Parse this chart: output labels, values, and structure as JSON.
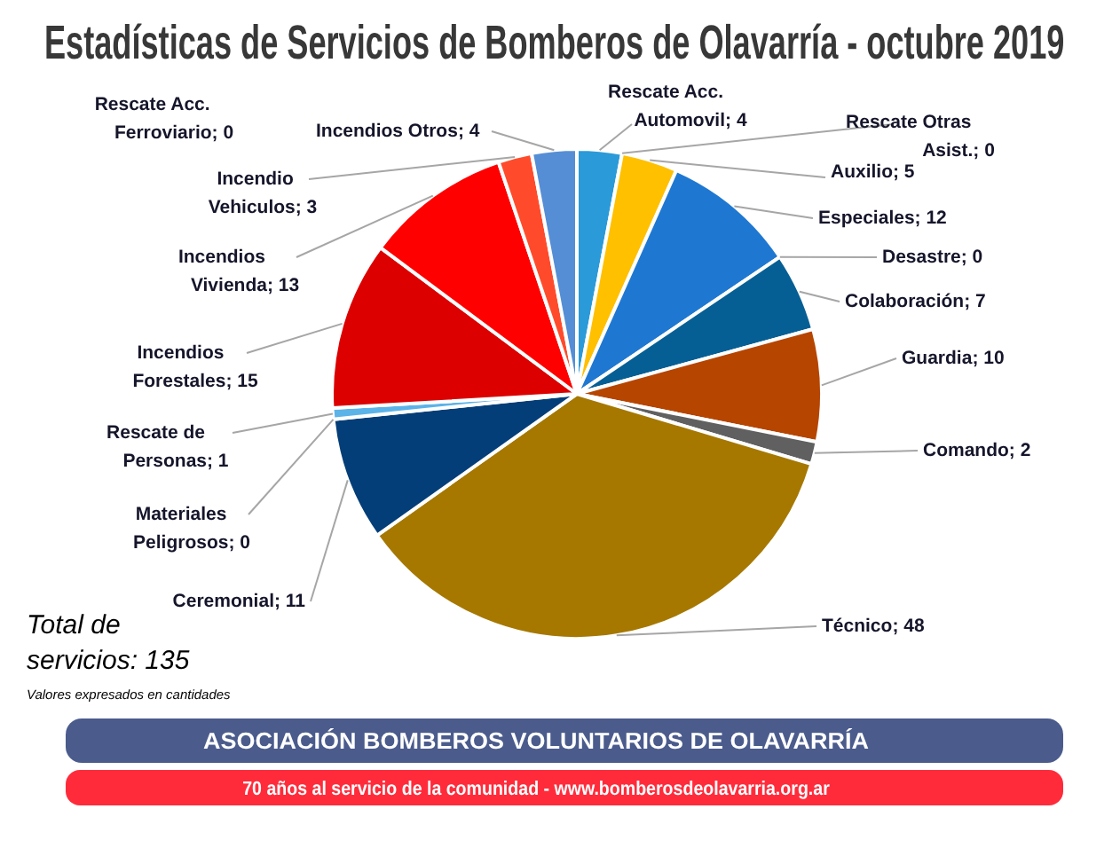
{
  "chart_data": {
    "type": "pie",
    "title": "Estadísticas de Servicios de Bomberos de Olavarría - octubre 2019",
    "categories": [
      "Rescate Acc. Automovil",
      "Rescate Otras Asist.",
      "Auxilio",
      "Especiales",
      "Desastre",
      "Colaboración",
      "Guardia",
      "Comando",
      "Técnico",
      "Ceremonial",
      "Materiales Peligrosos",
      "Rescate de Personas",
      "Incendios Forestales",
      "Incendios Vivienda",
      "Incendio Vehiculos",
      "Incendios Otros",
      "Rescate Acc. Ferroviario"
    ],
    "values": [
      4,
      0,
      5,
      12,
      0,
      7,
      10,
      2,
      48,
      11,
      0,
      1,
      15,
      13,
      3,
      4,
      0
    ],
    "value_labels": [
      "; 4",
      "; 0",
      "; 5",
      "; 12",
      "; 0",
      "; 7",
      "; 10",
      "; 2",
      "; 48",
      "; 11",
      "; 0",
      "; 1",
      "; 15",
      "; 13",
      "; 3",
      "; 4",
      "; 0"
    ],
    "colors": [
      "#2b9ad8",
      "#7f7f7f",
      "#ffc000",
      "#1e78d2",
      "#7f7f7f",
      "#065f94",
      "#b64500",
      "#606060",
      "#a67800",
      "#043e78",
      "#7f7f7f",
      "#5cb3e8",
      "#dc0000",
      "#ff0000",
      "#ff4b2b",
      "#558ed5",
      "#7f7f7f"
    ],
    "annotations": [
      "Total de servicios: 135",
      "Valores expresados en cantidades",
      "ASOCIACIÓN BOMBEROS VOLUNTARIOS DE OLAVARRÍA",
      "70 años al servicio de la comunidad - www.bomberosdeolavarria.org.ar"
    ]
  }
}
